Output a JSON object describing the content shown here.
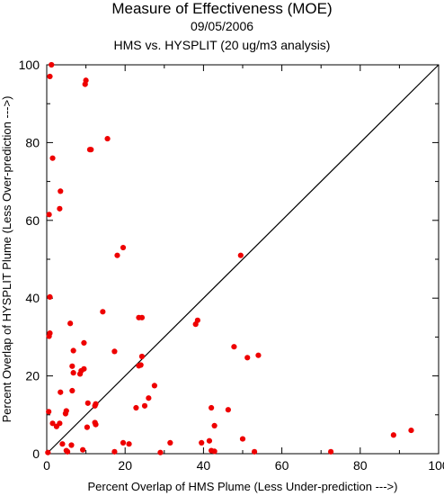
{
  "header": {
    "title": "Measure of Effectiveness (MOE)",
    "date": "09/05/2006",
    "subtitle": "HMS vs. HYSPLIT  (20 ug/m3 analysis)"
  },
  "colors": {
    "points": "#ee0000",
    "axes": "#000000",
    "background": "#ffffff"
  },
  "chart_data": {
    "type": "scatter",
    "title": "Measure of Effectiveness (MOE)",
    "xlabel": "Percent Overlap of HMS Plume (Less Under-prediction --->)",
    "ylabel": "Percent Overlap of HYSPLIT Plume (Less Over-prediction --->)",
    "xlim": [
      0,
      100
    ],
    "ylim": [
      0,
      100
    ],
    "xticks": [
      0,
      20,
      40,
      60,
      80,
      100
    ],
    "yticks": [
      0,
      20,
      40,
      60,
      80,
      100
    ],
    "grid": false,
    "reference_line": {
      "from": [
        0,
        0
      ],
      "to": [
        100,
        100
      ]
    },
    "points": [
      [
        1.2,
        100
      ],
      [
        0.8,
        97
      ],
      [
        10,
        96
      ],
      [
        9.8,
        95
      ],
      [
        15.5,
        81
      ],
      [
        11,
        78.2
      ],
      [
        11.3,
        78.2
      ],
      [
        1.5,
        76
      ],
      [
        3.5,
        67.5
      ],
      [
        3.3,
        63
      ],
      [
        0.6,
        61.5
      ],
      [
        19.5,
        53
      ],
      [
        18,
        51
      ],
      [
        49.5,
        51
      ],
      [
        0.8,
        40.3
      ],
      [
        14.3,
        36.5
      ],
      [
        23.5,
        35
      ],
      [
        24.3,
        35
      ],
      [
        0.8,
        31
      ],
      [
        0.6,
        30.2
      ],
      [
        6,
        33.5
      ],
      [
        38.5,
        34.3
      ],
      [
        38,
        33.3
      ],
      [
        9.5,
        28.5
      ],
      [
        6.8,
        26.5
      ],
      [
        17.3,
        26.3
      ],
      [
        24.3,
        25
      ],
      [
        54,
        25.3
      ],
      [
        51.2,
        24.7
      ],
      [
        47.8,
        27.5
      ],
      [
        6.5,
        22.5
      ],
      [
        23.5,
        22.6
      ],
      [
        24,
        22.8
      ],
      [
        9.5,
        21.8
      ],
      [
        8.8,
        21.3
      ],
      [
        6.8,
        20.8
      ],
      [
        8.5,
        20.5
      ],
      [
        27.5,
        17.5
      ],
      [
        3.5,
        15.8
      ],
      [
        6.5,
        16.2
      ],
      [
        26,
        14.3
      ],
      [
        10.5,
        13
      ],
      [
        12.5,
        12.8
      ],
      [
        12.3,
        12.3
      ],
      [
        22.8,
        11.8
      ],
      [
        25,
        12.3
      ],
      [
        42,
        11.8
      ],
      [
        46.3,
        11.3
      ],
      [
        5,
        11
      ],
      [
        0.5,
        10.8
      ],
      [
        4.8,
        10.3
      ],
      [
        12.3,
        8
      ],
      [
        12.5,
        7.5
      ],
      [
        1.5,
        7.8
      ],
      [
        3.3,
        7.8
      ],
      [
        2.5,
        7
      ],
      [
        10.3,
        6.8
      ],
      [
        42.8,
        7.2
      ],
      [
        39.5,
        2.8
      ],
      [
        41.5,
        3.3
      ],
      [
        50,
        3.8
      ],
      [
        88.5,
        4.8
      ],
      [
        93,
        6
      ],
      [
        19.5,
        2.8
      ],
      [
        21,
        2.5
      ],
      [
        31.5,
        2.8
      ],
      [
        4,
        2.5
      ],
      [
        6.3,
        2.2
      ],
      [
        5,
        0.8
      ],
      [
        5.3,
        0.5
      ],
      [
        9.2,
        1
      ],
      [
        17.3,
        0.5
      ],
      [
        29,
        0.3
      ],
      [
        42,
        0.8
      ],
      [
        42.8,
        0.6
      ],
      [
        53,
        0.5
      ],
      [
        72.5,
        0.5
      ],
      [
        0.3,
        0.3
      ]
    ]
  }
}
